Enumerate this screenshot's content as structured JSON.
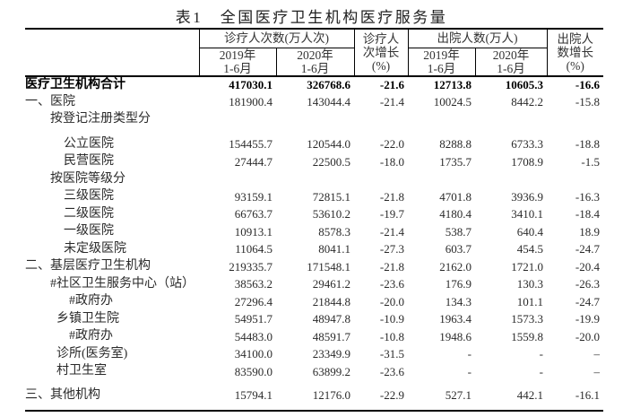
{
  "title": "表1　全国医疗卫生机构医疗服务量",
  "table": {
    "header": {
      "row_label_column": "",
      "outpatient_visits_group": "诊疗人次数(万人次)",
      "outpatient_growth": "诊疗人\n次增长\n(%)",
      "discharges_group": "出院人数(万人)",
      "discharge_growth": "出院人\n数增长\n(%)",
      "period_2019": "2019年\n1-6月",
      "period_2020": "2020年\n1-6月"
    },
    "rows": [
      {
        "label": "医疗卫生机构合计",
        "indent": 0,
        "bold": true,
        "gap": false,
        "values": [
          "417030.1",
          "326768.6",
          "-21.6",
          "12713.8",
          "10605.3",
          "-16.6"
        ]
      },
      {
        "label": "一、医院",
        "indent": 0,
        "bold": false,
        "gap": false,
        "values": [
          "181900.4",
          "143044.4",
          "-21.4",
          "10024.5",
          "8442.2",
          "-15.8"
        ]
      },
      {
        "label": "按登记注册类型分",
        "indent": 1,
        "bold": false,
        "gap": false,
        "values": [
          "",
          "",
          "",
          "",
          "",
          ""
        ]
      },
      {
        "label": "公立医院",
        "indent": 2,
        "bold": false,
        "gap": true,
        "values": [
          "154455.7",
          "120544.0",
          "-22.0",
          "8288.8",
          "6733.3",
          "-18.8"
        ]
      },
      {
        "label": "民营医院",
        "indent": 2,
        "bold": false,
        "gap": false,
        "values": [
          "27444.7",
          "22500.5",
          "-18.0",
          "1735.7",
          "1708.9",
          "-1.5"
        ]
      },
      {
        "label": "按医院等级分",
        "indent": 1,
        "bold": false,
        "gap": false,
        "values": [
          "",
          "",
          "",
          "",
          "",
          ""
        ]
      },
      {
        "label": "三级医院",
        "indent": 2,
        "bold": false,
        "gap": false,
        "values": [
          "93159.1",
          "72815.1",
          "-21.8",
          "4701.8",
          "3936.9",
          "-16.3"
        ]
      },
      {
        "label": "二级医院",
        "indent": 2,
        "bold": false,
        "gap": false,
        "values": [
          "66763.7",
          "53610.2",
          "-19.7",
          "4180.4",
          "3410.1",
          "-18.4"
        ]
      },
      {
        "label": "一级医院",
        "indent": 2,
        "bold": false,
        "gap": false,
        "values": [
          "10913.1",
          "8578.3",
          "-21.4",
          "538.7",
          "640.4",
          "18.9"
        ]
      },
      {
        "label": "未定级医院",
        "indent": 2,
        "bold": false,
        "gap": false,
        "values": [
          "11064.5",
          "8041.1",
          "-27.3",
          "603.7",
          "454.5",
          "-24.7"
        ]
      },
      {
        "label": "二、基层医疗卫生机构",
        "indent": 0,
        "bold": false,
        "gap": false,
        "values": [
          "219335.7",
          "171548.1",
          "-21.8",
          "2162.0",
          "1721.0",
          "-20.4"
        ]
      },
      {
        "label": "#社区卫生服务中心（站）",
        "indent": 1,
        "bold": false,
        "gap": false,
        "values": [
          "38563.2",
          "29461.2",
          "-23.6",
          "176.9",
          "130.3",
          "-26.3"
        ]
      },
      {
        "label": "#政府办",
        "indent": 4,
        "bold": false,
        "gap": false,
        "values": [
          "27296.4",
          "21844.8",
          "-20.0",
          "134.3",
          "101.1",
          "-24.7"
        ]
      },
      {
        "label": "乡镇卫生院",
        "indent": 3,
        "bold": false,
        "gap": false,
        "values": [
          "54951.7",
          "48947.8",
          "-10.9",
          "1963.4",
          "1573.3",
          "-19.9"
        ]
      },
      {
        "label": "#政府办",
        "indent": 4,
        "bold": false,
        "gap": false,
        "values": [
          "54483.0",
          "48591.7",
          "-10.8",
          "1948.6",
          "1559.8",
          "-20.0"
        ]
      },
      {
        "label": "诊所(医务室)",
        "indent": 3,
        "bold": false,
        "gap": false,
        "values": [
          "34100.0",
          "23349.9",
          "-31.5",
          "-",
          "-",
          "–"
        ]
      },
      {
        "label": "村卫生室",
        "indent": 3,
        "bold": false,
        "gap": false,
        "values": [
          "83590.0",
          "63899.2",
          "-23.6",
          "-",
          "-",
          "–"
        ]
      },
      {
        "label": "三、其他机构",
        "indent": 0,
        "bold": false,
        "gap": true,
        "values": [
          "15794.1",
          "12176.0",
          "-22.9",
          "527.1",
          "442.1",
          "-16.1"
        ]
      }
    ]
  }
}
